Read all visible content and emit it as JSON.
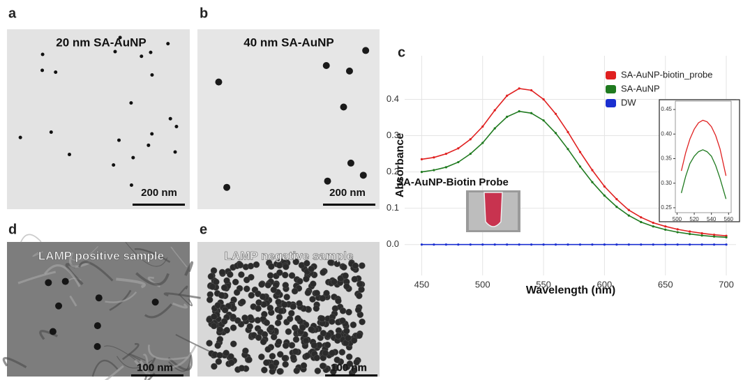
{
  "panels": [
    {
      "label": "a",
      "title": "20 nm SA-AuNP",
      "scale_bar": "200 nm"
    },
    {
      "label": "b",
      "title": "40 nm SA-AuNP",
      "scale_bar": "200 nm"
    },
    {
      "label": "d",
      "title": "LAMP positive sample",
      "scale_bar": "100 nm"
    },
    {
      "label": "e",
      "title": "LAMP negative sample",
      "scale_bar": "100 nm"
    }
  ],
  "chart_data": [
    {
      "type": "line",
      "panel_label": "c",
      "x_label": "Wavelength (nm)",
      "y_label": "Absorbance",
      "annotation": "SA-AuNP-Biotin Probe",
      "x": [
        450,
        460,
        470,
        480,
        490,
        500,
        510,
        520,
        530,
        540,
        550,
        560,
        570,
        580,
        590,
        600,
        610,
        620,
        630,
        640,
        650,
        660,
        670,
        680,
        690,
        700
      ],
      "series": [
        {
          "name": "SA-AuNP-biotin_probe",
          "color": "#e02020",
          "values": [
            0.235,
            0.24,
            0.25,
            0.265,
            0.29,
            0.325,
            0.37,
            0.41,
            0.43,
            0.425,
            0.4,
            0.36,
            0.31,
            0.255,
            0.205,
            0.16,
            0.125,
            0.095,
            0.075,
            0.06,
            0.05,
            0.042,
            0.036,
            0.031,
            0.027,
            0.024
          ]
        },
        {
          "name": "SA-AuNP",
          "color": "#1f7a1f",
          "values": [
            0.2,
            0.205,
            0.213,
            0.227,
            0.25,
            0.28,
            0.32,
            0.352,
            0.367,
            0.362,
            0.342,
            0.307,
            0.263,
            0.215,
            0.172,
            0.135,
            0.104,
            0.08,
            0.062,
            0.05,
            0.041,
            0.034,
            0.029,
            0.025,
            0.022,
            0.02
          ]
        },
        {
          "name": "DW",
          "color": "#1a2fd0",
          "values": [
            0,
            0,
            0,
            0,
            0,
            0,
            0,
            0,
            0,
            0,
            0,
            0,
            0,
            0,
            0,
            0,
            0,
            0,
            0,
            0,
            0,
            0,
            0,
            0,
            0,
            0
          ]
        }
      ],
      "xlim": [
        436,
        708
      ],
      "ylim": [
        -0.085,
        0.52
      ],
      "xticks": [
        450,
        500,
        550,
        600,
        650,
        700
      ],
      "yticks": [
        {
          "value": 0,
          "label": "0.0"
        },
        0.1,
        0.2,
        0.3,
        0.4
      ],
      "grid": true,
      "legend": "top-right"
    },
    {
      "type": "line",
      "x": [
        505,
        510,
        515,
        520,
        525,
        530,
        535,
        540,
        545,
        550,
        557
      ],
      "series": [
        {
          "color": "#e02020",
          "values": [
            0.325,
            0.362,
            0.39,
            0.41,
            0.423,
            0.428,
            0.425,
            0.415,
            0.397,
            0.37,
            0.315
          ]
        },
        {
          "color": "#1f7a1f",
          "values": [
            0.28,
            0.314,
            0.34,
            0.355,
            0.364,
            0.368,
            0.364,
            0.355,
            0.336,
            0.31,
            0.268
          ]
        }
      ],
      "xlim": [
        498,
        563
      ],
      "ylim": [
        0.24,
        0.46
      ],
      "xticks": [
        500,
        520,
        540,
        560
      ],
      "yticks": [
        0.25,
        {
          "value": 0.3,
          "label": "0.30"
        },
        0.35,
        {
          "value": 0.4,
          "label": "0.40"
        },
        0.45
      ],
      "grid": false
    }
  ]
}
